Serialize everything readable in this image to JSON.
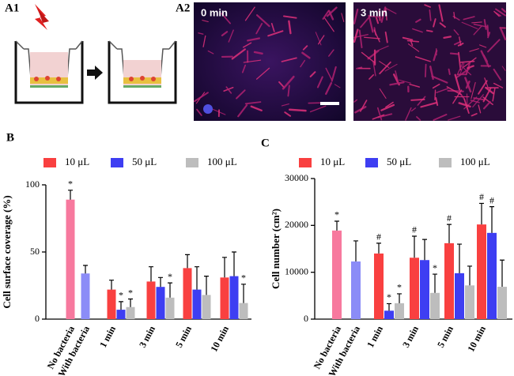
{
  "panel_labels": {
    "a1": "A1",
    "a2": "A2"
  },
  "image_labels": [
    "0 min",
    "3 min"
  ],
  "chart_data": [
    {
      "type": "bar",
      "panel_label": "B",
      "ylabel": "Cell surface coverage (%)",
      "categories": [
        "No bacteria",
        "With bacteria",
        "1 min",
        "3 min",
        "5 min",
        "10 min"
      ],
      "controls": {
        "colors": [
          "#f7799e",
          "#8b8cf7"
        ],
        "values": [
          89,
          34
        ],
        "errors": [
          7,
          6
        ],
        "annotations": [
          "*",
          null
        ]
      },
      "series": [
        {
          "name": "10 μL",
          "color": "#f94040",
          "values": [
            null,
            null,
            22,
            28,
            38,
            31
          ],
          "errors": [
            null,
            null,
            7,
            11,
            10,
            15
          ],
          "annotations": [
            null,
            null,
            null,
            null,
            null,
            null
          ]
        },
        {
          "name": "50 μL",
          "color": "#3e3ef2",
          "values": [
            null,
            null,
            7,
            24,
            22,
            32
          ],
          "errors": [
            null,
            null,
            6,
            7,
            17,
            18
          ],
          "annotations": [
            null,
            null,
            "*",
            null,
            null,
            null
          ]
        },
        {
          "name": "100 μL",
          "color": "#bdbdbd",
          "values": [
            null,
            null,
            9,
            16,
            18,
            12
          ],
          "errors": [
            null,
            null,
            6,
            11,
            14,
            14
          ],
          "annotations": [
            null,
            null,
            "*",
            "*",
            null,
            "*"
          ]
        }
      ],
      "ylim": [
        0,
        100
      ],
      "yticks": [
        0,
        50,
        100
      ]
    },
    {
      "type": "bar",
      "panel_label": "C",
      "ylabel": "Cell number (cm²)",
      "categories": [
        "No bacteria",
        "With bacteria",
        "1 min",
        "3 min",
        "5 min",
        "10 min"
      ],
      "controls": {
        "colors": [
          "#f7799e",
          "#8b8cf7"
        ],
        "values": [
          18900,
          12300
        ],
        "errors": [
          2000,
          4400
        ],
        "annotations": [
          "*",
          null
        ]
      },
      "series": [
        {
          "name": "10 μL",
          "color": "#f94040",
          "values": [
            null,
            null,
            14000,
            13100,
            16200,
            20200
          ],
          "errors": [
            null,
            null,
            2200,
            4600,
            4000,
            4500
          ],
          "annotations": [
            null,
            null,
            "#",
            "#",
            "#",
            "#"
          ]
        },
        {
          "name": "50 μL",
          "color": "#3e3ef2",
          "values": [
            null,
            null,
            1800,
            12600,
            9800,
            18400
          ],
          "errors": [
            null,
            null,
            1500,
            4400,
            6200,
            5600
          ],
          "annotations": [
            null,
            null,
            "*",
            null,
            null,
            "#"
          ]
        },
        {
          "name": "100 μL",
          "color": "#bdbdbd",
          "values": [
            null,
            null,
            3400,
            5600,
            7200,
            6900
          ],
          "errors": [
            null,
            null,
            2000,
            4000,
            4100,
            5700
          ],
          "annotations": [
            null,
            null,
            "*",
            "*",
            null,
            null
          ]
        }
      ],
      "ylim": [
        0,
        30000
      ],
      "yticks": [
        0,
        10000,
        20000,
        30000
      ]
    }
  ]
}
